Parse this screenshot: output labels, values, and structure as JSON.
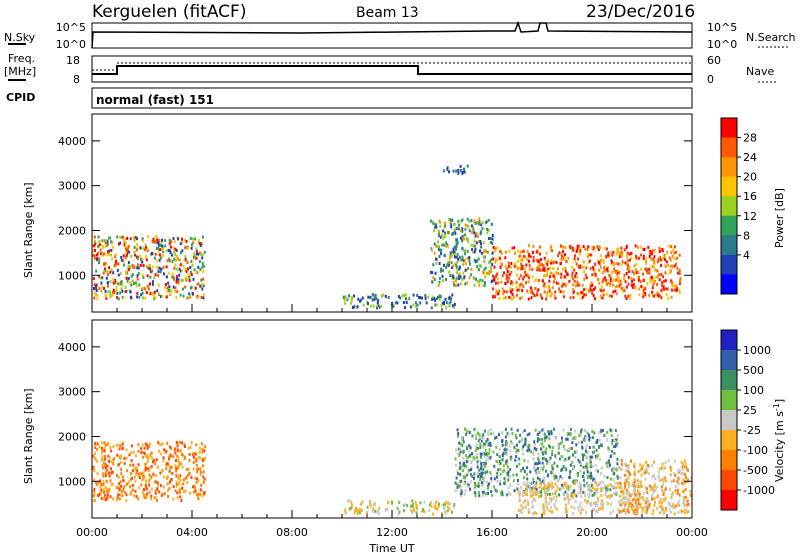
{
  "header": {
    "station": "Kerguelen (fitACF)",
    "beam": "Beam 13",
    "date": "23/Dec/2016"
  },
  "panels": {
    "nsky": {
      "left_label": "N.Sky",
      "left_ticks": [
        "10^5",
        "10^0"
      ],
      "right_ticks": [
        "10^5",
        "10^0"
      ],
      "right_label": "N.Search"
    },
    "freq": {
      "left_label_1": "Freq.",
      "left_label_2": "[MHz]",
      "left_ticks": [
        "18",
        "8"
      ],
      "right_ticks": [
        "60",
        "0"
      ],
      "right_label": "Nave"
    },
    "cpid": {
      "label": "CPID",
      "value": "normal (fast) 151"
    }
  },
  "power_colorbar": {
    "label": "Power [dB]",
    "ticks": [
      "28",
      "24",
      "20",
      "16",
      "12",
      "8",
      "4"
    ],
    "colors": [
      "#ff0000",
      "#ff5a00",
      "#ff9400",
      "#ffc400",
      "#9ad020",
      "#2fa35a",
      "#2b7a8c",
      "#2040b8",
      "#0000ff"
    ]
  },
  "velocity_colorbar": {
    "label": "Velocity [m s^-1]",
    "ticks": [
      "1000",
      "500",
      "100",
      "25",
      "-25",
      "-100",
      "-500",
      "-1000"
    ],
    "colors": [
      "#2020c0",
      "#2f60a8",
      "#3a9060",
      "#70c040",
      "#c8c8c8",
      "#ffb020",
      "#ff8000",
      "#ff4800",
      "#ff0000"
    ]
  },
  "chart_data": [
    {
      "type": "heatmap",
      "name": "power",
      "ylabel": "Slant Range [km]",
      "xlabel": "Time UT",
      "xticks": [
        "00:00",
        "04:00",
        "08:00",
        "12:00",
        "16:00",
        "20:00",
        "00:00"
      ],
      "yticks": [
        1000,
        2000,
        3000,
        4000
      ],
      "xlim_hours": [
        0,
        24
      ],
      "ylim_km": [
        180,
        4600
      ],
      "regions": [
        {
          "t": [
            0.0,
            4.5
          ],
          "r": [
            500,
            1900
          ],
          "level": "high"
        },
        {
          "t": [
            16.0,
            23.5
          ],
          "r": [
            500,
            1700
          ],
          "level": "high"
        },
        {
          "t": [
            13.5,
            16.0
          ],
          "r": [
            800,
            2300
          ],
          "level": "mid"
        },
        {
          "t": [
            10.0,
            14.5
          ],
          "r": [
            300,
            600
          ],
          "level": "low"
        },
        {
          "t": [
            14.0,
            15.0
          ],
          "r": [
            3300,
            3500
          ],
          "level": "low"
        }
      ]
    },
    {
      "type": "heatmap",
      "name": "velocity",
      "ylabel": "Slant Range [km]",
      "xlabel": "Time UT",
      "xticks": [
        "00:00",
        "04:00",
        "08:00",
        "12:00",
        "16:00",
        "20:00",
        "00:00"
      ],
      "yticks": [
        1000,
        2000,
        3000,
        4000
      ],
      "xlim_hours": [
        0,
        24
      ],
      "ylim_km": [
        180,
        4600
      ],
      "regions": [
        {
          "t": [
            0.0,
            4.5
          ],
          "r": [
            600,
            1900
          ],
          "v": "-100 to -500"
        },
        {
          "t": [
            14.5,
            21.0
          ],
          "r": [
            700,
            2200
          ],
          "v": "25 to 500"
        },
        {
          "t": [
            17.0,
            22.5
          ],
          "r": [
            300,
            1000
          ],
          "v": "-25 to 25"
        },
        {
          "t": [
            21.0,
            24.0
          ],
          "r": [
            300,
            1500
          ],
          "v": "-100 to -500"
        },
        {
          "t": [
            10.0,
            14.5
          ],
          "r": [
            300,
            600
          ],
          "v": "-25 to 100"
        }
      ]
    }
  ]
}
